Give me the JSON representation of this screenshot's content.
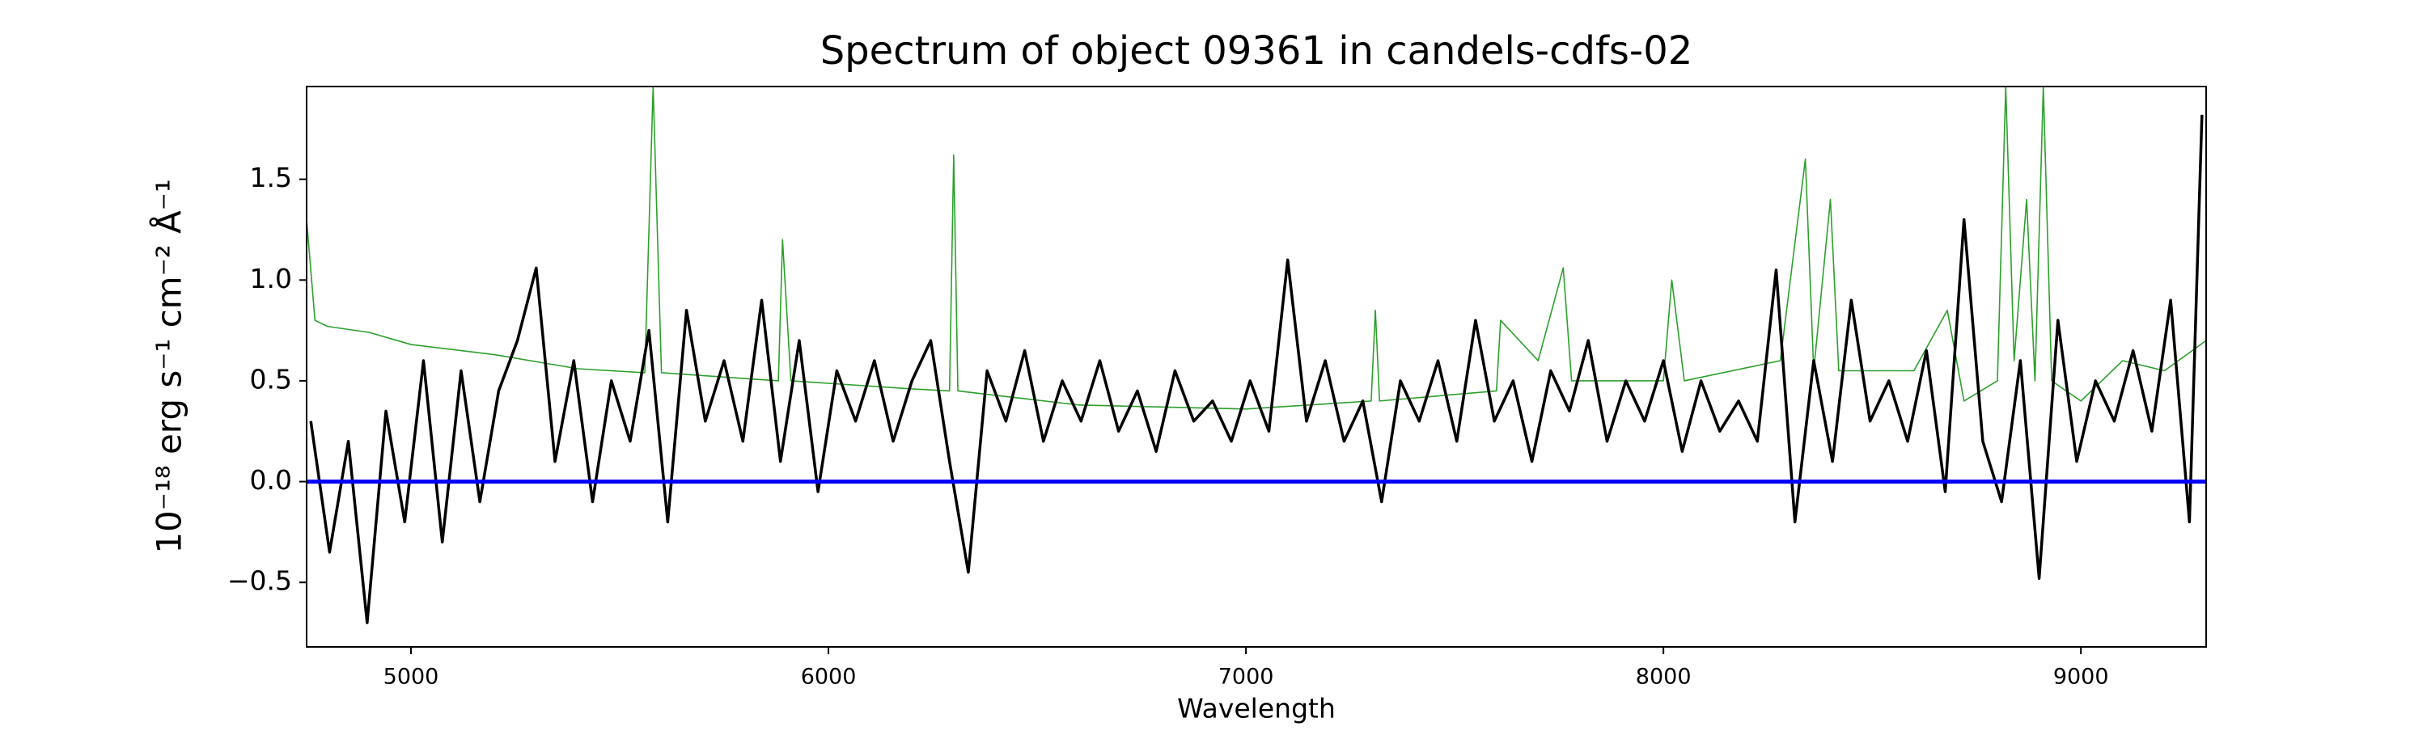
{
  "chart_data": {
    "type": "line",
    "title": "Spectrum of object 09361 in candels-cdfs-02",
    "xlabel": "Wavelength",
    "ylabel": "10⁻¹⁸ erg s⁻¹ cm⁻² Å⁻¹",
    "xlim": [
      4750,
      9300
    ],
    "ylim": [
      -0.82,
      1.96
    ],
    "xticks": [
      5000,
      6000,
      7000,
      8000,
      9000
    ],
    "yticks": [
      {
        "value": -0.5,
        "label": "−0.5"
      },
      {
        "value": 0,
        "label": "0.0"
      },
      {
        "value": 0.5,
        "label": "0.5"
      },
      {
        "value": 1,
        "label": "1.0"
      },
      {
        "value": 1.5,
        "label": "1.5"
      }
    ],
    "grid": false,
    "series": [
      {
        "color": "#2ca02c",
        "width": 1.6,
        "x": [
          4750,
          4770,
          4800,
          4900,
          5000,
          5200,
          5400,
          5560,
          5580,
          5600,
          5880,
          5890,
          5910,
          6200,
          6290,
          6300,
          6310,
          6600,
          7000,
          7300,
          7310,
          7320,
          7600,
          7610,
          7700,
          7760,
          7780,
          8000,
          8020,
          8050,
          8280,
          8340,
          8360,
          8400,
          8420,
          8600,
          8680,
          8720,
          8800,
          8820,
          8840,
          8870,
          8890,
          8910,
          8930,
          9000,
          9100,
          9200,
          9300
        ],
        "values": [
          1.3,
          0.8,
          0.77,
          0.74,
          0.68,
          0.63,
          0.56,
          0.54,
          1.96,
          0.54,
          0.5,
          1.2,
          0.5,
          0.46,
          0.45,
          1.62,
          0.45,
          0.38,
          0.36,
          0.4,
          0.85,
          0.4,
          0.45,
          0.8,
          0.6,
          1.06,
          0.5,
          0.5,
          1.0,
          0.5,
          0.6,
          1.6,
          0.55,
          1.4,
          0.55,
          0.55,
          0.85,
          0.4,
          0.5,
          1.96,
          0.6,
          1.4,
          0.5,
          1.96,
          0.5,
          0.4,
          0.6,
          0.55,
          0.7
        ]
      },
      {
        "color": "#000000",
        "width": 3.5,
        "x": [
          4760,
          4805,
          4850,
          4895,
          4940,
          4985,
          5030,
          5075,
          5120,
          5165,
          5210,
          5255,
          5300,
          5345,
          5390,
          5435,
          5480,
          5525,
          5570,
          5615,
          5660,
          5705,
          5750,
          5795,
          5840,
          5885,
          5930,
          5975,
          6020,
          6065,
          6110,
          6155,
          6200,
          6245,
          6290,
          6335,
          6380,
          6425,
          6470,
          6515,
          6560,
          6605,
          6650,
          6695,
          6740,
          6785,
          6830,
          6875,
          6920,
          6965,
          7010,
          7055,
          7100,
          7145,
          7190,
          7235,
          7280,
          7325,
          7370,
          7415,
          7460,
          7505,
          7550,
          7595,
          7640,
          7685,
          7730,
          7775,
          7820,
          7865,
          7910,
          7955,
          8000,
          8045,
          8090,
          8135,
          8180,
          8225,
          8270,
          8315,
          8360,
          8405,
          8450,
          8495,
          8540,
          8585,
          8630,
          8675,
          8720,
          8765,
          8810,
          8855,
          8900,
          8945,
          8990,
          9035,
          9080,
          9125,
          9170,
          9215,
          9260,
          9290
        ],
        "values": [
          0.3,
          -0.35,
          0.2,
          -0.7,
          0.35,
          -0.2,
          0.6,
          -0.3,
          0.55,
          -0.1,
          0.45,
          0.7,
          1.06,
          0.1,
          0.6,
          -0.1,
          0.5,
          0.2,
          0.75,
          -0.2,
          0.85,
          0.3,
          0.6,
          0.2,
          0.9,
          0.1,
          0.7,
          -0.05,
          0.55,
          0.3,
          0.6,
          0.2,
          0.5,
          0.7,
          0.1,
          -0.45,
          0.55,
          0.3,
          0.65,
          0.2,
          0.5,
          0.3,
          0.6,
          0.25,
          0.45,
          0.15,
          0.55,
          0.3,
          0.4,
          0.2,
          0.5,
          0.25,
          1.1,
          0.3,
          0.6,
          0.2,
          0.4,
          -0.1,
          0.5,
          0.3,
          0.6,
          0.2,
          0.8,
          0.3,
          0.5,
          0.1,
          0.55,
          0.35,
          0.7,
          0.2,
          0.5,
          0.3,
          0.6,
          0.15,
          0.5,
          0.25,
          0.4,
          0.2,
          1.05,
          -0.2,
          0.6,
          0.1,
          0.9,
          0.3,
          0.5,
          0.2,
          0.65,
          -0.05,
          1.3,
          0.2,
          -0.1,
          0.6,
          -0.48,
          0.8,
          0.1,
          0.5,
          0.3,
          0.65,
          0.25,
          0.9,
          -0.2,
          1.82
        ]
      },
      {
        "color": "#0000ff",
        "width": 5,
        "x": [
          4750,
          9300
        ],
        "values": [
          0,
          0
        ]
      }
    ]
  }
}
